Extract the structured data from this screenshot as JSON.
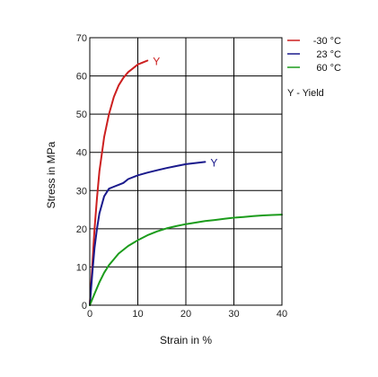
{
  "chart_data": {
    "type": "line",
    "xlabel": "Strain in %",
    "ylabel": "Stress in MPa",
    "xlim": [
      0,
      40
    ],
    "ylim": [
      0,
      70
    ],
    "x_ticks": [
      "0",
      "10",
      "20",
      "30",
      "40"
    ],
    "y_ticks": [
      "0",
      "10",
      "20",
      "30",
      "40",
      "50",
      "60",
      "70"
    ],
    "grid": true,
    "legend_position": "top-right",
    "legend_note": "Y - Yield",
    "series": [
      {
        "name": "-30 °C",
        "color": "#cc1f1f",
        "yield_label": "Y",
        "points": [
          [
            0,
            0
          ],
          [
            0.5,
            10
          ],
          [
            1,
            20
          ],
          [
            1.5,
            28
          ],
          [
            2,
            35
          ],
          [
            3,
            44
          ],
          [
            4,
            50
          ],
          [
            5,
            54.5
          ],
          [
            6,
            57.5
          ],
          [
            7,
            59.5
          ],
          [
            8,
            61
          ],
          [
            9,
            62
          ],
          [
            10,
            63
          ],
          [
            11,
            63.5
          ],
          [
            12,
            64
          ]
        ]
      },
      {
        "name": "23 °C",
        "color": "#1a1a8c",
        "yield_label": "Y",
        "points": [
          [
            0,
            0
          ],
          [
            0.5,
            8
          ],
          [
            1,
            15
          ],
          [
            1.5,
            20
          ],
          [
            2,
            24
          ],
          [
            3,
            28.5
          ],
          [
            4,
            30.5
          ],
          [
            5,
            31
          ],
          [
            6,
            31.5
          ],
          [
            7,
            32
          ],
          [
            8,
            33
          ],
          [
            10,
            34
          ],
          [
            12,
            34.7
          ],
          [
            14,
            35.3
          ],
          [
            16,
            35.9
          ],
          [
            18,
            36.4
          ],
          [
            20,
            36.9
          ],
          [
            22,
            37.2
          ],
          [
            24,
            37.5
          ]
        ]
      },
      {
        "name": "60 °C",
        "color": "#1c9c1c",
        "points": [
          [
            0,
            0
          ],
          [
            1,
            3
          ],
          [
            2,
            6
          ],
          [
            3,
            8.5
          ],
          [
            4,
            10.5
          ],
          [
            5,
            12
          ],
          [
            6,
            13.5
          ],
          [
            8,
            15.5
          ],
          [
            10,
            17
          ],
          [
            12,
            18.3
          ],
          [
            14,
            19.3
          ],
          [
            16,
            20.1
          ],
          [
            18,
            20.7
          ],
          [
            20,
            21.2
          ],
          [
            22,
            21.6
          ],
          [
            24,
            22
          ],
          [
            26,
            22.3
          ],
          [
            28,
            22.6
          ],
          [
            30,
            22.9
          ],
          [
            32,
            23.1
          ],
          [
            34,
            23.3
          ],
          [
            36,
            23.5
          ],
          [
            38,
            23.6
          ],
          [
            40,
            23.7
          ]
        ]
      }
    ]
  }
}
